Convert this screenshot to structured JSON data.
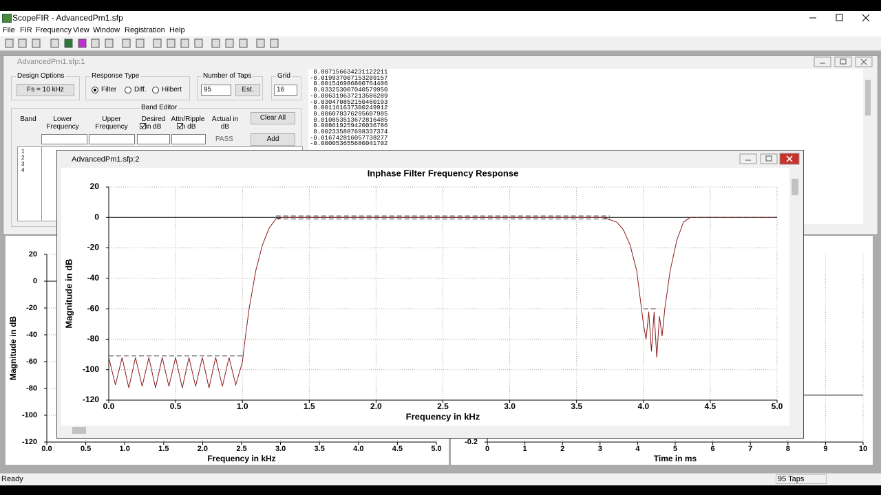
{
  "app": {
    "title": "ScopeFIR - AdvancedPm1.sfp",
    "menu": [
      "File",
      "FIR",
      "Frequency",
      "View",
      "Window",
      "Registration",
      "Help"
    ],
    "status": {
      "left": "Ready",
      "right": "95 Taps"
    }
  },
  "design_window": {
    "title": "AdvancedPm1.sfp:1",
    "design_options": {
      "label": "Design Options",
      "button": "Fs = 10 kHz"
    },
    "response_type": {
      "label": "Response Type",
      "options": [
        "Filter",
        "Diff.",
        "Hilbert"
      ]
    },
    "taps": {
      "label": "Number of Taps",
      "value": 95,
      "button": "Est."
    },
    "grid": {
      "label": "Grid",
      "value": 16
    },
    "band_editor": {
      "label": "Band Editor",
      "columns": [
        "Band",
        "Lower Frequency",
        "Upper Frequency",
        "Desired in dB",
        "Attn/Ripple in dB",
        "Actual in dB"
      ],
      "actual": "PASS",
      "buttons": [
        "Clear All",
        "Add"
      ],
      "bands": [
        1,
        2,
        3,
        4
      ]
    },
    "coefficients": [
      " 0.007156634231122211",
      "-0.019937007153209157",
      " 0.001546986800764406",
      " 0.033253007040579950",
      "-0.006319637213586289",
      "-0.030470852150460193",
      " 0.001161637300249912",
      " 0.006078376295607985",
      " 0.010853513672816485",
      " 0.008619259420036786",
      " 0.002335887698337374",
      "-0.016742816057738277",
      "-0.000053655680041702"
    ]
  },
  "plot_window": {
    "title": "AdvancedPm1.sfp:2"
  },
  "chart_data": [
    {
      "type": "line",
      "title": "Inphase Filter Frequency Response",
      "xlabel": "Frequency in kHz",
      "ylabel": "Magnitude in dB",
      "color": "#8b1a1a",
      "grid": true,
      "xlim": [
        0,
        5
      ],
      "ylim": [
        -120,
        20
      ],
      "xticks": [
        {
          "value": 0,
          "label": "0.0"
        },
        0.5,
        {
          "value": 1,
          "label": "1.0"
        },
        1.5,
        {
          "value": 2,
          "label": "2.0"
        },
        2.5,
        {
          "value": 3,
          "label": "3.0"
        },
        3.5,
        {
          "value": 4,
          "label": "4.0"
        },
        4.5,
        {
          "value": 5,
          "label": "5.0"
        }
      ],
      "yticks": [
        20,
        0,
        -20,
        -40,
        -60,
        -80,
        -100,
        -120
      ],
      "x": [
        0,
        0.05,
        0.1,
        0.15,
        0.2,
        0.25,
        0.3,
        0.35,
        0.4,
        0.45,
        0.5,
        0.55,
        0.6,
        0.65,
        0.7,
        0.75,
        0.8,
        0.85,
        0.9,
        0.95,
        1,
        1.02,
        1.05,
        1.1,
        1.15,
        1.2,
        1.25,
        1.3,
        3.7,
        3.8,
        3.85,
        3.9,
        3.95,
        4,
        4.02,
        4.04,
        4.06,
        4.08,
        4.1,
        4.12,
        4.14,
        4.16,
        4.2,
        4.25,
        4.3,
        4.35,
        5
      ],
      "values": [
        -92,
        -110,
        -92,
        -112,
        -92,
        -111,
        -92,
        -112,
        -92,
        -111,
        -92,
        -112,
        -92,
        -111,
        -92,
        -112,
        -92,
        -111,
        -92,
        -110,
        -95,
        -80,
        -60,
        -35,
        -18,
        -7,
        -1,
        0,
        0,
        -3,
        -8,
        -18,
        -35,
        -70,
        -80,
        -62,
        -88,
        -62,
        -92,
        -65,
        -78,
        -60,
        -35,
        -15,
        -3,
        0,
        0
      ],
      "spec_lines": [
        {
          "x": [
            0,
            1
          ],
          "y": -91
        },
        {
          "x": [
            1.25,
            3.75
          ],
          "y": 1
        },
        {
          "x": [
            1.25,
            3.75
          ],
          "y": -1
        },
        {
          "x": [
            4,
            4.1
          ],
          "y": -60
        },
        {
          "x": [
            4.3,
            5
          ],
          "y": 0
        }
      ]
    },
    {
      "type": "line",
      "xlabel": "Frequency in kHz",
      "ylabel": "Magnitude in dB",
      "grid": true,
      "xlim": [
        0,
        5
      ],
      "ylim": [
        -120,
        20
      ],
      "xticks": [
        {
          "value": 0,
          "label": "0.0"
        },
        0.5,
        {
          "value": 1,
          "label": "1.0"
        },
        1.5,
        {
          "value": 2,
          "label": "2.0"
        },
        2.5,
        {
          "value": 3,
          "label": "3.0"
        },
        3.5,
        {
          "value": 4,
          "label": "4.0"
        },
        4.5,
        {
          "value": 5,
          "label": "5.0"
        }
      ],
      "yticks": [
        20,
        0,
        -20,
        -40,
        -60,
        -80,
        -100,
        -120
      ]
    },
    {
      "type": "line",
      "xlabel": "Time in ms",
      "grid": true,
      "xlim": [
        0,
        10
      ],
      "ylim": [
        -0.2,
        0.6
      ],
      "xticks": [
        0,
        1,
        2,
        3,
        4,
        5,
        6,
        7,
        8,
        9,
        10
      ],
      "yticks": [
        -0.2
      ]
    }
  ]
}
